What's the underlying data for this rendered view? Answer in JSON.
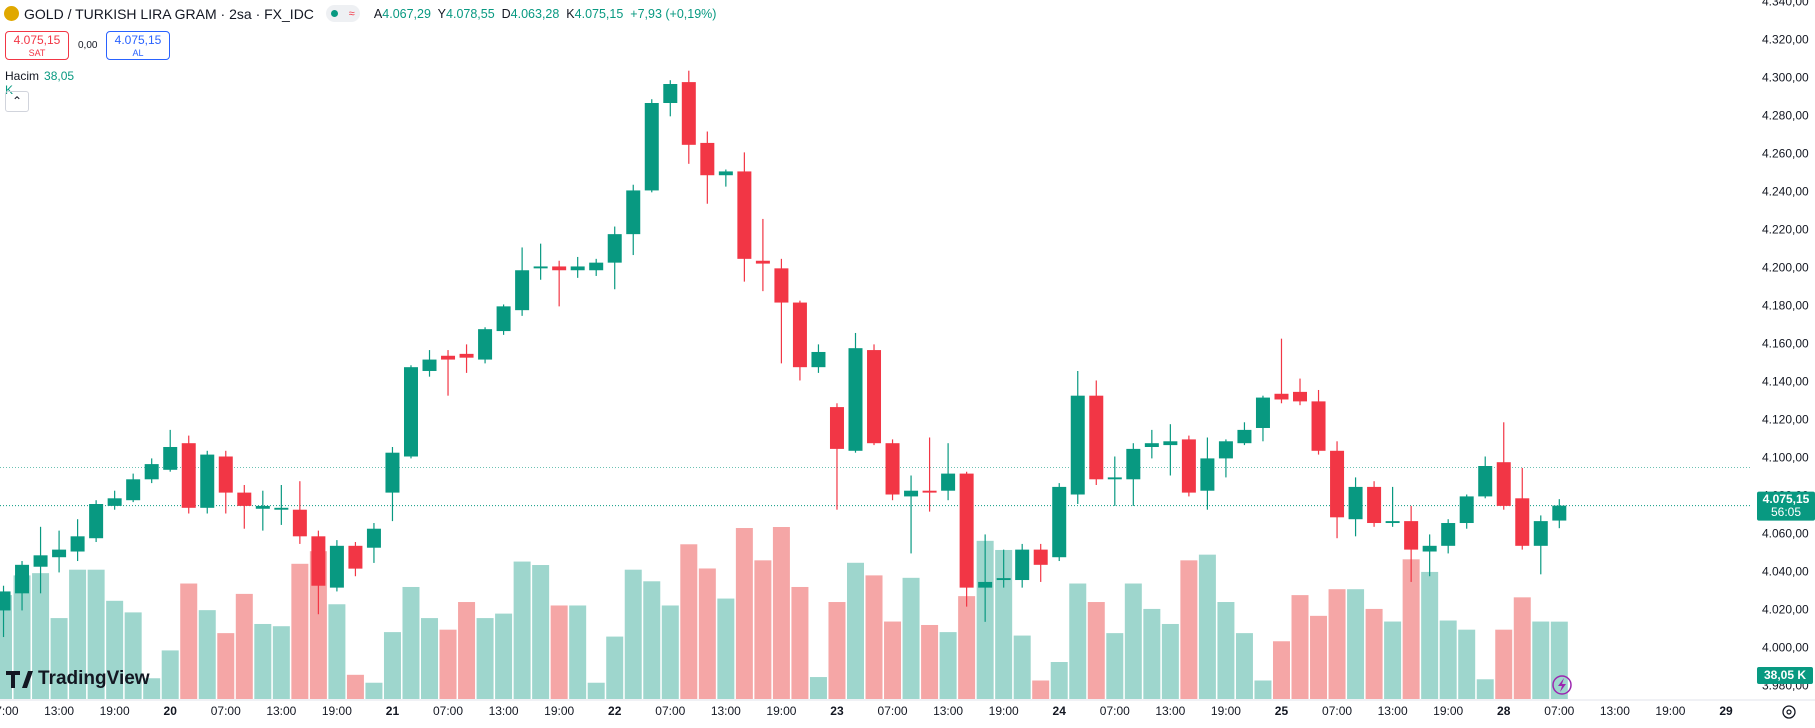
{
  "header": {
    "symbol": "GOLD / TURKISH LIRA GRAM · 2sa · FX_IDC",
    "ohlc": [
      {
        "key": "A",
        "value": "4.067,29"
      },
      {
        "key": "Y",
        "value": "4.078,55"
      },
      {
        "key": "D",
        "value": "4.063,28"
      },
      {
        "key": "K",
        "value": "4.075,15"
      }
    ],
    "change": "+7,93 (+0,19%)",
    "sell": {
      "price": "4.075,15",
      "label": "SAT"
    },
    "spread": "0,00",
    "buy": {
      "price": "4.075,15",
      "label": "AL"
    },
    "volume_title": "Hacim",
    "volume_value": "38,05 K"
  },
  "chart_data": {
    "type": "candlestick",
    "open": [
      4020,
      4029,
      4043,
      4048,
      4051,
      4058,
      4075,
      4078,
      4089,
      4094,
      4108,
      4074,
      4101,
      4082,
      4073.5,
      4073,
      4073,
      4059,
      4032,
      4054,
      4053,
      4082,
      4101,
      4146,
      4154,
      4155,
      4152,
      4167,
      4178,
      4200,
      4201,
      4199,
      4199,
      4203,
      4218,
      4241,
      4287,
      4298,
      4266,
      4249,
      4251,
      4204,
      4200,
      4182,
      4148,
      4127,
      4104,
      4157,
      4108,
      4080,
      4083,
      4083,
      4092,
      4032,
      4036,
      4036,
      4052,
      4048,
      4081,
      4133,
      4089,
      4089,
      4106,
      4107,
      4110,
      4083,
      4100,
      4108,
      4116,
      4134,
      4135,
      4130,
      4104,
      4068,
      4085,
      4066,
      4067,
      4051,
      4054,
      4066,
      4080,
      4098,
      4079,
      4054,
      4067.29
    ],
    "high": [
      4033,
      4046,
      4064,
      4062,
      4068,
      4078,
      4083,
      4092,
      4100,
      4115,
      4112,
      4104,
      4104,
      4086,
      4083,
      4086,
      4088,
      4062,
      4057,
      4056,
      4066,
      4106,
      4149,
      4157,
      4157,
      4160,
      4169,
      4181,
      4211,
      4213,
      4204,
      4206,
      4205,
      4222,
      4244,
      4289,
      4299,
      4304,
      4272,
      4252,
      4261,
      4226,
      4205,
      4183,
      4160,
      4129,
      4166,
      4160,
      4110,
      4091,
      4111,
      4108,
      4093,
      4060,
      4052,
      4055,
      4055,
      4087,
      4146,
      4141,
      4101,
      4108,
      4115,
      4118,
      4112,
      4111,
      4110,
      4119,
      4133,
      4163,
      4142,
      4136,
      4109,
      4090,
      4088,
      4085,
      4075,
      4060,
      4068,
      4081,
      4101,
      4119,
      4095,
      4070,
      4078.55
    ],
    "low": [
      4006,
      4020,
      4029,
      4040,
      4046,
      4056,
      4073,
      4077,
      4087,
      4093,
      4071,
      4071,
      4071,
      4063,
      4062,
      4065,
      4055,
      4018,
      4030,
      4038,
      4045,
      4067,
      4100,
      4143,
      4133,
      4145,
      4150,
      4165,
      4175,
      4194,
      4180,
      4195,
      4196,
      4189,
      4207,
      4240,
      4280,
      4255,
      4234,
      4243,
      4193,
      4188,
      4150,
      4141,
      4145,
      4073,
      4103,
      4107,
      4078,
      4050,
      4072,
      4078,
      4022,
      4014,
      4032,
      4032,
      4035,
      4046,
      4076,
      4086,
      4075,
      4075,
      4100,
      4091,
      4080,
      4073,
      4090,
      4107,
      4109,
      4129,
      4128,
      4102,
      4058,
      4059,
      4064,
      4064,
      4035,
      4038,
      4050,
      4063,
      4079,
      4073,
      4052,
      4039,
      4063.28
    ],
    "close": [
      4030,
      4044,
      4049,
      4052,
      4059,
      4076,
      4079,
      4089,
      4097,
      4106,
      4074,
      4102,
      4082,
      4075,
      4075,
      4074,
      4059,
      4033,
      4054,
      4042,
      4063,
      4103,
      4148,
      4152,
      4152,
      4153,
      4168,
      4180,
      4199,
      4201,
      4199,
      4201,
      4203,
      4218,
      4241,
      4287,
      4297,
      4265,
      4249,
      4251,
      4205,
      4202.5,
      4182,
      4148,
      4156,
      4105,
      4158,
      4108,
      4081,
      4083,
      4082,
      4092,
      4032,
      4035,
      4037,
      4052,
      4044,
      4085,
      4133,
      4089,
      4090,
      4105,
      4108,
      4109,
      4082,
      4100,
      4109,
      4115,
      4132,
      4131,
      4130,
      4104,
      4069,
      4085,
      4066,
      4067,
      4052,
      4054,
      4066,
      4080,
      4096,
      4075,
      4054,
      4067,
      4075.15
    ],
    "volume": [
      51.1,
      60.8,
      61.9,
      39.8,
      63.6,
      63.6,
      48.3,
      42.6,
      10.2,
      23.9,
      56.8,
      43.7,
      32.4,
      51.7,
      36.9,
      35.8,
      66.5,
      72.7,
      46.6,
      11.9,
      8.0,
      32.9,
      55.1,
      39.8,
      34.1,
      47.7,
      39.8,
      42.0,
      67.6,
      65.9,
      46.0,
      46.0,
      8.0,
      30.7,
      63.6,
      57.9,
      46.0,
      76.1,
      64.2,
      49.4,
      84.1,
      68.2,
      84.6,
      55.1,
      10.8,
      47.7,
      67.0,
      60.8,
      38.1,
      59.6,
      36.4,
      32.9,
      50.6,
      77.8,
      73.3,
      31.2,
      9.1,
      18.2,
      56.8,
      47.7,
      32.4,
      56.8,
      44.3,
      36.9,
      68.2,
      71.0,
      47.7,
      32.4,
      9.1,
      28.4,
      51.1,
      40.9,
      54.0,
      54.0,
      44.3,
      38.1,
      68.7,
      62.5,
      38.6,
      34.1,
      9.7,
      34.1,
      50.0,
      38.1,
      38.05
    ],
    "volume_label": "38,05 K",
    "up_color": "#089981",
    "down_color": "#f23645",
    "up_volume_color": "#9ed6cd",
    "down_volume_color": "#f5a6a6",
    "ylim": [
      3973.4,
      4341.2
    ],
    "yticks": [
      {
        "value": 3980,
        "label": "3.980,00"
      },
      {
        "value": 4000,
        "label": "4.000,00"
      },
      {
        "value": 4020,
        "label": "4.020,00"
      },
      {
        "value": 4040,
        "label": "4.040,00"
      },
      {
        "value": 4060,
        "label": "4.060,00"
      },
      {
        "value": 4080,
        "label": "4.080,00"
      },
      {
        "value": 4100,
        "label": "4.100,00"
      },
      {
        "value": 4120,
        "label": "4.120,00"
      },
      {
        "value": 4140,
        "label": "4.140,00"
      },
      {
        "value": 4160,
        "label": "4.160,00"
      },
      {
        "value": 4180,
        "label": "4.180,00"
      },
      {
        "value": 4200,
        "label": "4.200,00"
      },
      {
        "value": 4220,
        "label": "4.220,00"
      },
      {
        "value": 4240,
        "label": "4.240,00"
      },
      {
        "value": 4260,
        "label": "4.260,00"
      },
      {
        "value": 4280,
        "label": "4.280,00"
      },
      {
        "value": 4300,
        "label": "4.300,00"
      },
      {
        "value": 4320,
        "label": "4.320,00"
      },
      {
        "value": 4340,
        "label": "4.340,00"
      }
    ],
    "xlim": [
      -0.19,
      94.35
    ],
    "xticks": [
      {
        "value": 0,
        "label": "07:00"
      },
      {
        "value": 3,
        "label": "13:00"
      },
      {
        "value": 6,
        "label": "19:00"
      },
      {
        "value": 9,
        "label": "20"
      },
      {
        "value": 12,
        "label": "07:00"
      },
      {
        "value": 15,
        "label": "13:00"
      },
      {
        "value": 18,
        "label": "19:00"
      },
      {
        "value": 21,
        "label": "21"
      },
      {
        "value": 24,
        "label": "07:00"
      },
      {
        "value": 27,
        "label": "13:00"
      },
      {
        "value": 30,
        "label": "19:00"
      },
      {
        "value": 33,
        "label": "22"
      },
      {
        "value": 36,
        "label": "07:00"
      },
      {
        "value": 39,
        "label": "13:00"
      },
      {
        "value": 42,
        "label": "19:00"
      },
      {
        "value": 45,
        "label": "23"
      },
      {
        "value": 48,
        "label": "07:00"
      },
      {
        "value": 51,
        "label": "13:00"
      },
      {
        "value": 54,
        "label": "19:00"
      },
      {
        "value": 57,
        "label": "24"
      },
      {
        "value": 60,
        "label": "07:00"
      },
      {
        "value": 63,
        "label": "13:00"
      },
      {
        "value": 66,
        "label": "19:00"
      },
      {
        "value": 69,
        "label": "25"
      },
      {
        "value": 72,
        "label": "07:00"
      },
      {
        "value": 75,
        "label": "13:00"
      },
      {
        "value": 78,
        "label": "19:00"
      },
      {
        "value": 81,
        "label": "28"
      },
      {
        "value": 84,
        "label": "07:00"
      },
      {
        "value": 87,
        "label": "13:00"
      },
      {
        "value": 90,
        "label": "19:00"
      },
      {
        "value": 93,
        "label": "29"
      }
    ],
    "last_price": {
      "value": 4075.15,
      "label": "4.075,15"
    },
    "countdown": "56:05",
    "reference_line": 4095.2,
    "grid": false,
    "logo": "TradingView"
  }
}
